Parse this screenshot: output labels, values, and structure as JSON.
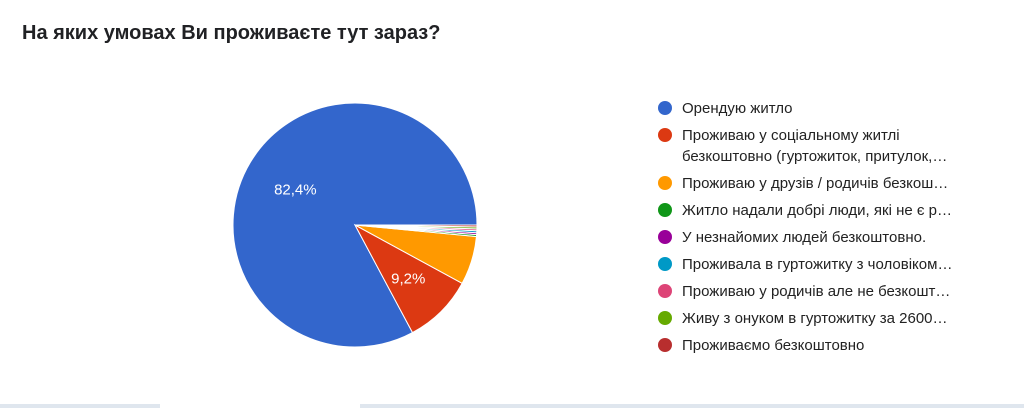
{
  "title": "На яких умовах Ви проживаєте тут зараз?",
  "chart_data": {
    "type": "pie",
    "title": "На яких умовах Ви проживаєте тут зараз?",
    "legend_position": "right",
    "slices": [
      {
        "label": "Орендую житло",
        "value": 82.4,
        "color": "#3366cc",
        "data_label": "82,4%"
      },
      {
        "label": "Проживаю у соціальному житлі безкоштовно (гуртожиток, притулок,…",
        "value": 9.2,
        "color": "#dc3912",
        "data_label": "9,2%"
      },
      {
        "label": "Проживаю у друзів / родичів безкош…",
        "value": 6.4,
        "color": "#ff9900",
        "data_label": ""
      },
      {
        "label": "Житло надали добрі люди, які не є р…",
        "value": 0.25,
        "color": "#109618",
        "data_label": ""
      },
      {
        "label": "У незнайомих людей безкоштовно.",
        "value": 0.25,
        "color": "#990099",
        "data_label": ""
      },
      {
        "label": "Проживала в гуртожитку з чоловіком…",
        "value": 0.25,
        "color": "#0099c6",
        "data_label": ""
      },
      {
        "label": "Проживаю у родичів але не безкошт…",
        "value": 0.25,
        "color": "#dd4477",
        "data_label": ""
      },
      {
        "label": "Живу з онуком в гуртожитку за 2600…",
        "value": 0.25,
        "color": "#66aa00",
        "data_label": ""
      },
      {
        "label": "Проживаємо безкоштовно",
        "value": 0.25,
        "color": "#b82e2e",
        "data_label": ""
      }
    ]
  }
}
